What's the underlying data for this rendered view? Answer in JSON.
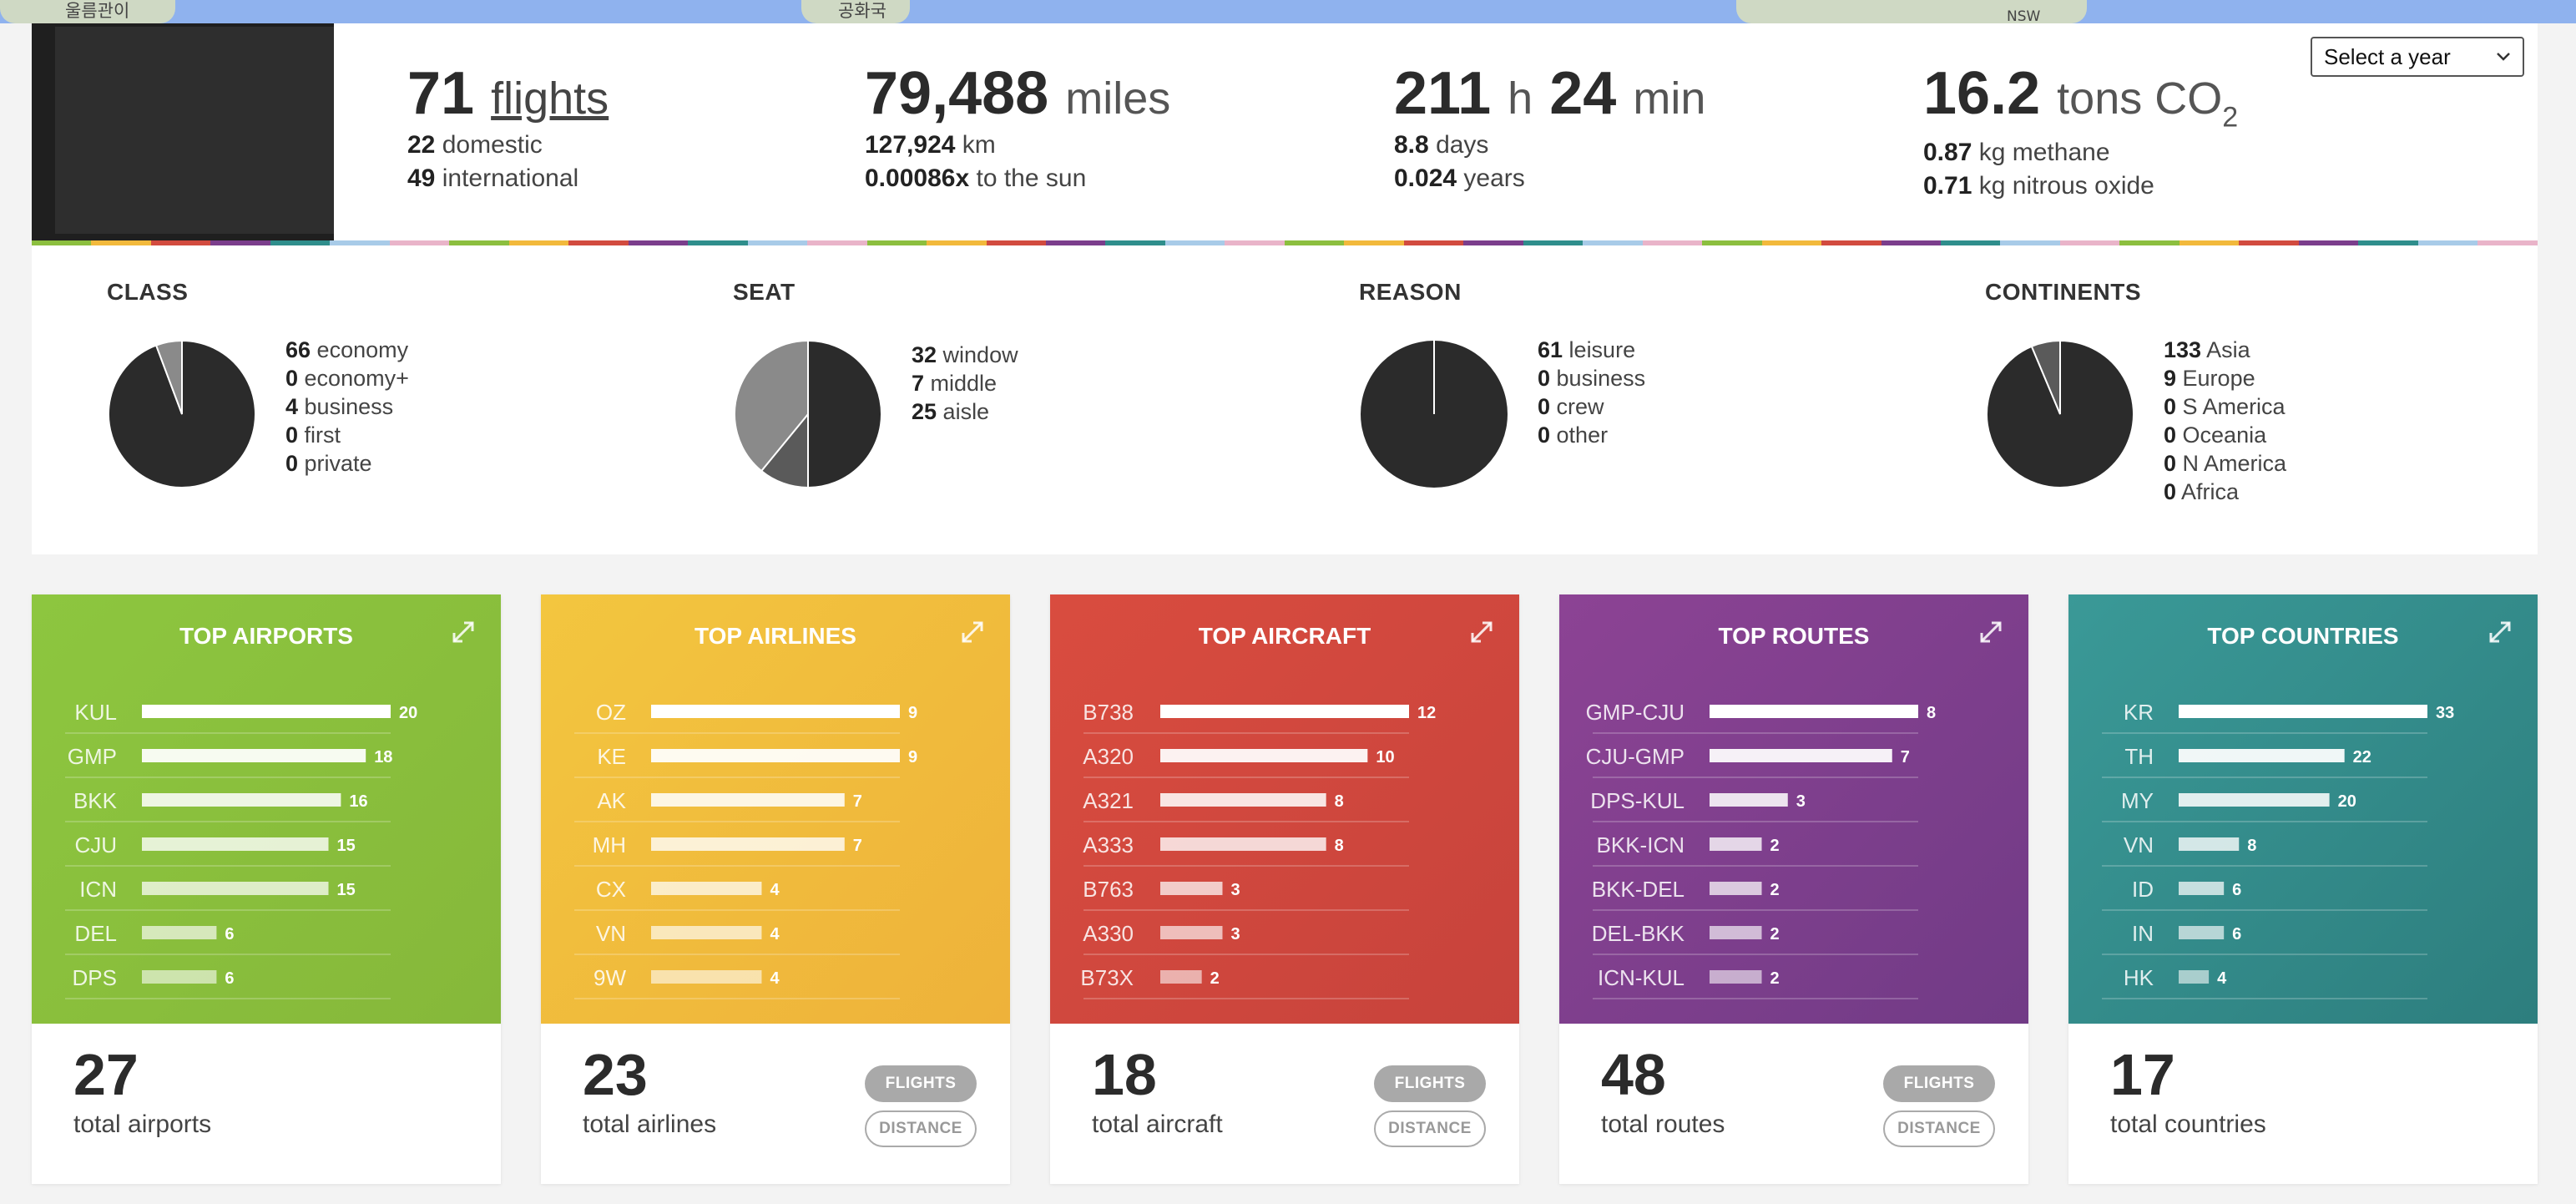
{
  "map": {
    "label_left": "울름관이",
    "label_mid": "공화국",
    "label_right": "NSW"
  },
  "stats": {
    "flights": {
      "count": "71",
      "word": "flights",
      "domestic_num": "22",
      "domestic_label": "domestic",
      "international_num": "49",
      "international_label": "international"
    },
    "distance": {
      "miles": "79,488",
      "miles_unit": "miles",
      "km": "127,924",
      "km_unit": "km",
      "sun": "0.00086x",
      "sun_label": "to the sun"
    },
    "time": {
      "hours": "211",
      "h_unit": "h",
      "minutes": "24",
      "min_unit": "min",
      "days": "8.8",
      "days_label": "days",
      "years": "0.024",
      "years_label": "years"
    },
    "emissions": {
      "co2": "16.2",
      "co2_unit": "tons CO",
      "co2_sub": "2",
      "methane": "0.87",
      "methane_label": "kg methane",
      "n2o": "0.71",
      "n2o_label": "kg nitrous oxide"
    }
  },
  "year_select": {
    "value": "Select a year",
    "chevron_icon": "chevron-down-icon"
  },
  "stripe_colors": [
    "#8cbf3f",
    "#f2b93c",
    "#d24b3f",
    "#7b3e8c",
    "#2f8e8c",
    "#a8cbe8",
    "#e9b4c9",
    "#8cbf3f",
    "#f2b93c",
    "#d24b3f",
    "#7b3e8c",
    "#2f8e8c",
    "#a8cbe8",
    "#e9b4c9",
    "#8cbf3f",
    "#f2b93c",
    "#d24b3f",
    "#7b3e8c",
    "#2f8e8c",
    "#a8cbe8",
    "#e9b4c9",
    "#8cbf3f",
    "#f2b93c",
    "#d24b3f",
    "#7b3e8c",
    "#2f8e8c",
    "#a8cbe8",
    "#e9b4c9",
    "#8cbf3f",
    "#f2b93c",
    "#d24b3f",
    "#7b3e8c",
    "#2f8e8c",
    "#a8cbe8",
    "#e9b4c9",
    "#8cbf3f",
    "#f2b93c",
    "#d24b3f",
    "#7b3e8c",
    "#2f8e8c",
    "#a8cbe8",
    "#e9b4c9"
  ],
  "pies": [
    {
      "title": "CLASS",
      "items": [
        {
          "value": 66,
          "label": "economy"
        },
        {
          "value": 0,
          "label": "economy+"
        },
        {
          "value": 4,
          "label": "business"
        },
        {
          "value": 0,
          "label": "first"
        },
        {
          "value": 0,
          "label": "private"
        }
      ]
    },
    {
      "title": "SEAT",
      "items": [
        {
          "value": 32,
          "label": "window"
        },
        {
          "value": 7,
          "label": "middle"
        },
        {
          "value": 25,
          "label": "aisle"
        }
      ]
    },
    {
      "title": "REASON",
      "items": [
        {
          "value": 61,
          "label": "leisure"
        },
        {
          "value": 0,
          "label": "business"
        },
        {
          "value": 0,
          "label": "crew"
        },
        {
          "value": 0,
          "label": "other"
        }
      ]
    },
    {
      "title": "CONTINENTS",
      "items": [
        {
          "value": 133,
          "label": "Asia"
        },
        {
          "value": 9,
          "label": "Europe"
        },
        {
          "value": 0,
          "label": "S America"
        },
        {
          "value": 0,
          "label": "Oceania"
        },
        {
          "value": 0,
          "label": "N America"
        },
        {
          "value": 0,
          "label": "Africa"
        }
      ]
    }
  ],
  "pie_colors": [
    "#2b2b2b",
    "#5a5a5a",
    "#8a8a8a",
    "#aaaaaa",
    "#c4c4c4",
    "#dddddd"
  ],
  "top_cards": [
    {
      "key": "airports",
      "title": "TOP AIRPORTS",
      "color_a": "#8dc63f",
      "color_b": "#86b83a",
      "total": "27",
      "total_label": "total airports",
      "has_toggle": false,
      "rows": [
        {
          "label": "KUL",
          "value": 20
        },
        {
          "label": "GMP",
          "value": 18
        },
        {
          "label": "BKK",
          "value": 16
        },
        {
          "label": "CJU",
          "value": 15
        },
        {
          "label": "ICN",
          "value": 15
        },
        {
          "label": "DEL",
          "value": 6
        },
        {
          "label": "DPS",
          "value": 6
        }
      ]
    },
    {
      "key": "airlines",
      "title": "TOP AIRLINES",
      "color_a": "#f3c63f",
      "color_b": "#eeb23a",
      "total": "23",
      "total_label": "total airlines",
      "has_toggle": true,
      "rows": [
        {
          "label": "OZ",
          "value": 9
        },
        {
          "label": "KE",
          "value": 9
        },
        {
          "label": "AK",
          "value": 7
        },
        {
          "label": "MH",
          "value": 7
        },
        {
          "label": "CX",
          "value": 4
        },
        {
          "label": "VN",
          "value": 4
        },
        {
          "label": "9W",
          "value": 4
        }
      ]
    },
    {
      "key": "aircraft",
      "title": "TOP AIRCRAFT",
      "color_a": "#d94c3f",
      "color_b": "#c7433c",
      "total": "18",
      "total_label": "total aircraft",
      "has_toggle": true,
      "rows": [
        {
          "label": "B738",
          "value": 12
        },
        {
          "label": "A320",
          "value": 10
        },
        {
          "label": "A321",
          "value": 8
        },
        {
          "label": "A333",
          "value": 8
        },
        {
          "label": "B763",
          "value": 3
        },
        {
          "label": "A330",
          "value": 3
        },
        {
          "label": "B73X",
          "value": 2
        }
      ]
    },
    {
      "key": "routes",
      "title": "TOP ROUTES",
      "color_a": "#8c4394",
      "color_b": "#713b86",
      "total": "48",
      "total_label": "total routes",
      "has_toggle": true,
      "rows": [
        {
          "label": "GMP-CJU",
          "value": 8
        },
        {
          "label": "CJU-GMP",
          "value": 7
        },
        {
          "label": "DPS-KUL",
          "value": 3
        },
        {
          "label": "BKK-ICN",
          "value": 2
        },
        {
          "label": "BKK-DEL",
          "value": 2
        },
        {
          "label": "DEL-BKK",
          "value": 2
        },
        {
          "label": "ICN-KUL",
          "value": 2
        }
      ]
    },
    {
      "key": "countries",
      "title": "TOP COUNTRIES",
      "color_a": "#3a9997",
      "color_b": "#2d7e7e",
      "total": "17",
      "total_label": "total countries",
      "has_toggle": false,
      "rows": [
        {
          "label": "KR",
          "value": 33
        },
        {
          "label": "TH",
          "value": 22
        },
        {
          "label": "MY",
          "value": 20
        },
        {
          "label": "VN",
          "value": 8
        },
        {
          "label": "ID",
          "value": 6
        },
        {
          "label": "IN",
          "value": 6
        },
        {
          "label": "HK",
          "value": 4
        }
      ]
    }
  ],
  "toggle": {
    "flights_label": "FLIGHTS",
    "distance_label": "DISTANCE"
  },
  "chart_data": [
    {
      "type": "pie",
      "title": "CLASS",
      "categories": [
        "economy",
        "economy+",
        "business",
        "first",
        "private"
      ],
      "values": [
        66,
        0,
        4,
        0,
        0
      ]
    },
    {
      "type": "pie",
      "title": "SEAT",
      "categories": [
        "window",
        "middle",
        "aisle"
      ],
      "values": [
        32,
        7,
        25
      ]
    },
    {
      "type": "pie",
      "title": "REASON",
      "categories": [
        "leisure",
        "business",
        "crew",
        "other"
      ],
      "values": [
        61,
        0,
        0,
        0
      ]
    },
    {
      "type": "pie",
      "title": "CONTINENTS",
      "categories": [
        "Asia",
        "Europe",
        "S America",
        "Oceania",
        "N America",
        "Africa"
      ],
      "values": [
        133,
        9,
        0,
        0,
        0,
        0
      ]
    },
    {
      "type": "bar",
      "title": "TOP AIRPORTS",
      "categories": [
        "KUL",
        "GMP",
        "BKK",
        "CJU",
        "ICN",
        "DEL",
        "DPS"
      ],
      "values": [
        20,
        18,
        16,
        15,
        15,
        6,
        6
      ]
    },
    {
      "type": "bar",
      "title": "TOP AIRLINES",
      "categories": [
        "OZ",
        "KE",
        "AK",
        "MH",
        "CX",
        "VN",
        "9W"
      ],
      "values": [
        9,
        9,
        7,
        7,
        4,
        4,
        4
      ]
    },
    {
      "type": "bar",
      "title": "TOP AIRCRAFT",
      "categories": [
        "B738",
        "A320",
        "A321",
        "A333",
        "B763",
        "A330",
        "B73X"
      ],
      "values": [
        12,
        10,
        8,
        8,
        3,
        3,
        2
      ]
    },
    {
      "type": "bar",
      "title": "TOP ROUTES",
      "categories": [
        "GMP-CJU",
        "CJU-GMP",
        "DPS-KUL",
        "BKK-ICN",
        "BKK-DEL",
        "DEL-BKK",
        "ICN-KUL"
      ],
      "values": [
        8,
        7,
        3,
        2,
        2,
        2,
        2
      ]
    },
    {
      "type": "bar",
      "title": "TOP COUNTRIES",
      "categories": [
        "KR",
        "TH",
        "MY",
        "VN",
        "ID",
        "IN",
        "HK"
      ],
      "values": [
        33,
        22,
        20,
        8,
        6,
        6,
        4
      ]
    }
  ]
}
